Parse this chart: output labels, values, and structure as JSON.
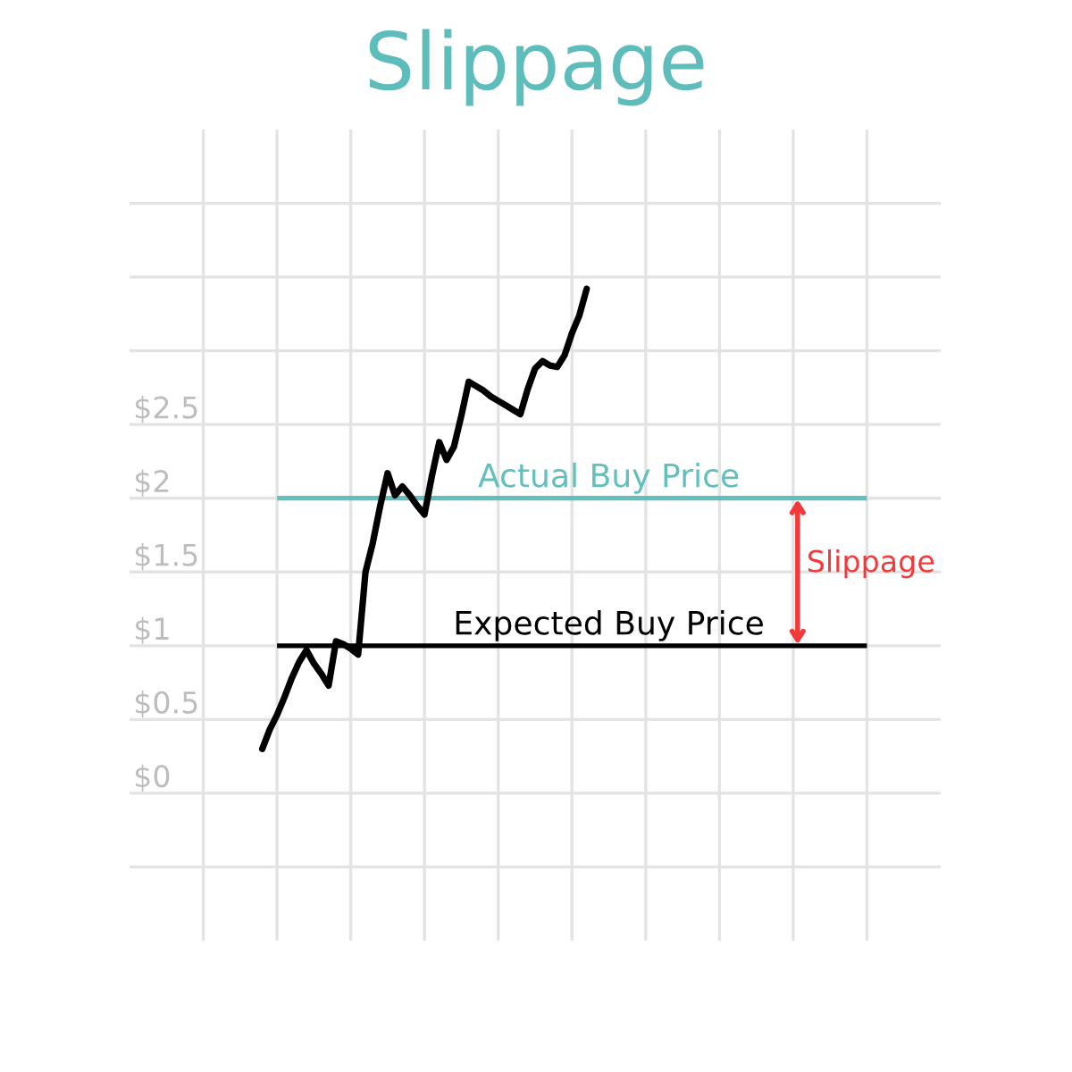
{
  "chart_data": {
    "type": "line",
    "title": "Slippage",
    "categories": [
      null,
      null,
      null,
      null,
      null,
      null,
      null,
      null,
      null,
      null,
      null,
      null,
      null,
      null,
      null,
      null,
      null,
      null,
      null,
      null,
      null,
      null,
      null,
      null,
      null,
      null,
      null,
      null,
      null,
      null,
      null,
      null,
      null,
      null,
      null,
      null,
      null,
      null,
      null,
      null,
      null,
      null,
      null,
      null,
      null,
      null,
      null,
      null,
      null,
      null,
      null,
      null,
      null,
      null,
      null,
      null,
      null,
      null,
      null,
      null,
      null,
      null,
      null,
      null,
      null,
      null,
      null,
      null,
      null,
      null,
      null,
      null,
      null,
      null,
      null,
      null,
      null,
      null,
      null,
      null,
      null,
      null,
      null,
      null,
      null,
      null,
      null,
      null,
      null,
      null,
      null,
      null,
      null,
      null,
      null,
      null,
      null,
      null,
      null,
      null,
      null,
      null,
      null,
      null,
      null,
      null,
      null,
      null,
      null,
      null,
      null
    ],
    "series": [
      {
        "color": "#000000",
        "values": [
          null,
          null,
          null,
          null,
          null,
          null,
          null,
          null,
          null,
          null,
          null,
          null,
          null,
          null,
          null,
          null,
          null,
          null,
          0.3,
          0.43,
          0.53,
          0.65,
          0.78,
          0.89,
          0.97,
          0.88,
          0.81,
          0.73,
          1.03,
          1.01,
          0.98,
          0.94,
          1.5,
          1.7,
          1.95,
          2.17,
          2.02,
          2.08,
          2.02,
          1.95,
          1.89,
          2.15,
          2.38,
          2.26,
          2.35,
          2.56,
          2.79,
          2.76,
          2.73,
          2.69,
          2.66,
          2.63,
          2.6,
          2.57,
          2.74,
          2.88,
          2.93,
          2.9,
          2.89,
          2.97,
          3.12,
          3.24,
          3.42,
          null,
          null,
          null,
          null,
          null,
          null,
          null,
          null,
          null,
          null,
          null,
          null,
          null,
          null,
          null,
          null,
          null,
          null,
          null,
          null,
          null,
          null,
          null,
          null,
          null,
          null,
          null,
          null,
          null,
          null,
          null,
          null,
          null,
          null,
          null,
          null,
          null,
          null,
          null,
          null,
          null,
          null,
          null,
          null,
          null,
          null,
          null,
          null
        ]
      }
    ],
    "ylim": [
      -1,
      4.5
    ],
    "yticks": [
      {
        "value": -0.5,
        "label": null
      },
      {
        "value": 0,
        "label": "$0"
      },
      {
        "value": 0.5,
        "label": "$0.5"
      },
      {
        "value": 1,
        "label": "$1"
      },
      {
        "value": 1.5,
        "label": "$1.5"
      },
      {
        "value": 2,
        "label": "$2"
      },
      {
        "value": 2.5,
        "label": "$2.5"
      },
      {
        "value": 3,
        "label": null
      },
      {
        "value": 3.5,
        "label": null
      },
      {
        "value": 4,
        "label": null
      }
    ],
    "tick_labels": "y",
    "grid": true,
    "ref_lines": [
      {
        "axis": "y",
        "value": 2,
        "label": "Actual Buy Price",
        "color": "#63bfbc"
      },
      {
        "axis": "y",
        "value": 1,
        "label": "Expected Buy Price",
        "color": "#000000"
      }
    ],
    "annotations": [
      "Slippage"
    ]
  }
}
